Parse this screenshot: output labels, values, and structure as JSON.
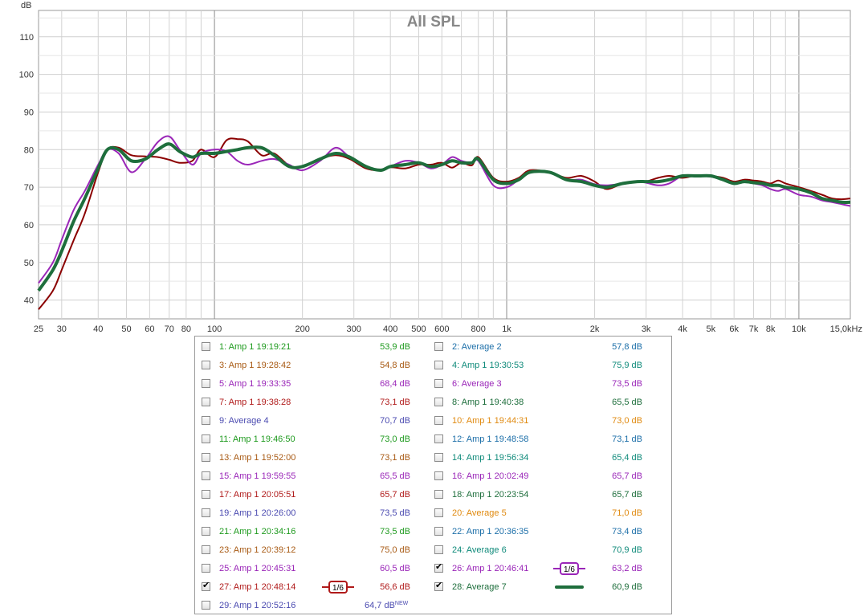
{
  "chart_data": {
    "type": "line",
    "title": "All SPL",
    "ylabel": "dB",
    "xlabel": "",
    "xscale": "log",
    "xlim": [
      25,
      15000
    ],
    "ylim": [
      35,
      117
    ],
    "grid": true,
    "y_ticks": [
      "40",
      "50",
      "60",
      "70",
      "80",
      "90",
      "100",
      "110"
    ],
    "y_tick_values": [
      40,
      50,
      60,
      70,
      80,
      90,
      100,
      110
    ],
    "x_ticks": [
      "25",
      "30",
      "40",
      "50",
      "60",
      "70",
      "80",
      "100",
      "200",
      "300",
      "400",
      "500",
      "600",
      "800",
      "1k",
      "2k",
      "3k",
      "4k",
      "5k",
      "6k",
      "7k",
      "8k",
      "10k",
      "15,0kHz"
    ],
    "x_tick_values": [
      25,
      30,
      40,
      50,
      60,
      70,
      80,
      100,
      200,
      300,
      400,
      500,
      600,
      800,
      1000,
      2000,
      3000,
      4000,
      5000,
      6000,
      7000,
      8000,
      10000,
      15000
    ],
    "series": [
      {
        "name": "27: Amp 1 20:48:14",
        "color": "#8b0000",
        "width": 2,
        "x": [
          25,
          28,
          30,
          33,
          36,
          40,
          43,
          47,
          52,
          58,
          64,
          70,
          76,
          84,
          90,
          100,
          110,
          120,
          130,
          145,
          160,
          180,
          200,
          230,
          260,
          290,
          330,
          370,
          400,
          450,
          500,
          550,
          600,
          650,
          700,
          760,
          800,
          900,
          1000,
          1100,
          1200,
          1400,
          1600,
          1800,
          2000,
          2200,
          2500,
          2800,
          3000,
          3300,
          3600,
          4000,
          4500,
          5000,
          5500,
          6000,
          6500,
          7000,
          7500,
          8000,
          8500,
          9000,
          10000,
          11000,
          12000,
          13000,
          14000,
          15000
        ],
        "y": [
          37.5,
          42.5,
          48,
          56,
          63,
          74,
          80,
          80.5,
          78.5,
          78.2,
          78,
          77.3,
          76.5,
          77,
          80,
          78,
          82.5,
          82.8,
          82.2,
          78.5,
          79,
          75.8,
          75.5,
          77.5,
          78.5,
          77.5,
          75,
          74.5,
          75.3,
          75,
          76,
          76,
          76.5,
          75.2,
          76.5,
          75.8,
          78,
          72.5,
          71.5,
          72.5,
          74.5,
          74,
          72.5,
          73,
          71.5,
          69.5,
          71,
          71.5,
          71.5,
          72.5,
          73,
          72.5,
          73.2,
          73,
          72.5,
          71.5,
          72,
          71.8,
          71.5,
          71,
          71.8,
          71,
          70,
          69,
          68,
          67,
          66.8,
          67
        ]
      },
      {
        "name": "26: Amp 1 20:46:41",
        "color": "#9a26b8",
        "width": 2,
        "x": [
          25,
          28,
          30,
          33,
          36,
          40,
          43,
          47,
          52,
          58,
          64,
          70,
          76,
          84,
          90,
          100,
          110,
          120,
          130,
          145,
          160,
          180,
          200,
          230,
          260,
          290,
          330,
          370,
          400,
          450,
          500,
          550,
          600,
          650,
          700,
          760,
          800,
          900,
          1000,
          1100,
          1200,
          1400,
          1600,
          1800,
          2000,
          2200,
          2500,
          2800,
          3000,
          3300,
          3600,
          4000,
          4500,
          5000,
          5500,
          6000,
          6500,
          7000,
          7500,
          8000,
          8500,
          9000,
          10000,
          11000,
          12000,
          13000,
          14000,
          15000
        ],
        "y": [
          44.5,
          50,
          56,
          64,
          69,
          76,
          80,
          79,
          74,
          77.5,
          82,
          83.5,
          80,
          76,
          79,
          80,
          79.5,
          77,
          76,
          77,
          77.5,
          76,
          74.5,
          77,
          80.5,
          78,
          75.5,
          74.5,
          75.5,
          77,
          76.5,
          75,
          76,
          78,
          77,
          76.5,
          77,
          70.5,
          70,
          72,
          74,
          74,
          72,
          72,
          70.8,
          70.5,
          71,
          71.5,
          71.2,
          70.5,
          71,
          73,
          73,
          72.8,
          72,
          71,
          71.5,
          71,
          70.5,
          69.5,
          69,
          69.5,
          68,
          67.5,
          66.5,
          66,
          65.5,
          65
        ]
      },
      {
        "name": "28: Average 7",
        "color": "#1e6e3c",
        "width": 4,
        "x": [
          25,
          28,
          30,
          33,
          36,
          40,
          43,
          47,
          52,
          58,
          64,
          70,
          76,
          84,
          90,
          100,
          110,
          120,
          130,
          145,
          160,
          180,
          200,
          230,
          260,
          290,
          330,
          370,
          400,
          450,
          500,
          550,
          600,
          650,
          700,
          760,
          800,
          900,
          1000,
          1100,
          1200,
          1400,
          1600,
          1800,
          2000,
          2200,
          2500,
          2800,
          3000,
          3300,
          3600,
          4000,
          4500,
          5000,
          5500,
          6000,
          6500,
          7000,
          7500,
          8000,
          8500,
          9000,
          10000,
          11000,
          12000,
          13000,
          14000,
          15000
        ],
        "y": [
          42.5,
          48,
          53,
          61,
          67,
          75,
          80,
          80,
          77,
          77.5,
          80,
          81.5,
          79.5,
          78,
          79,
          79,
          79.5,
          80,
          80.5,
          80.5,
          78.5,
          75.5,
          75.5,
          77.5,
          79,
          78,
          75.5,
          74.5,
          75.5,
          76,
          76.5,
          75.5,
          76,
          77,
          76.5,
          76.5,
          77.5,
          72,
          71,
          72,
          74,
          74,
          72,
          71.5,
          70.5,
          70,
          71,
          71.5,
          71.5,
          71.5,
          72,
          73,
          73,
          73,
          72,
          71,
          71.5,
          71.2,
          71,
          70.5,
          70.5,
          70,
          69.5,
          68.5,
          67,
          66.5,
          66,
          66
        ]
      }
    ]
  },
  "legend": {
    "items": [
      {
        "label": "1: Amp 1 19:19:21",
        "value": "53,9 dB",
        "color": "#1e9a1e",
        "checked": false
      },
      {
        "label": "2: Average 2",
        "value": "57,8 dB",
        "color": "#1b6ea8",
        "checked": false
      },
      {
        "label": "3: Amp 1 19:28:42",
        "value": "54,8 dB",
        "color": "#a85a14",
        "checked": false
      },
      {
        "label": "4: Amp 1 19:30:53",
        "value": "75,9 dB",
        "color": "#0f8a7a",
        "checked": false
      },
      {
        "label": "5: Amp 1 19:33:35",
        "value": "68,4 dB",
        "color": "#9a26b8",
        "checked": false
      },
      {
        "label": "6: Average 3",
        "value": "73,5 dB",
        "color": "#9a26b8",
        "checked": false
      },
      {
        "label": "7: Amp 1 19:38:28",
        "value": "73,1 dB",
        "color": "#b01a1a",
        "checked": false
      },
      {
        "label": "8: Amp 1 19:40:38",
        "value": "65,5 dB",
        "color": "#1e6e3c",
        "checked": false
      },
      {
        "label": "9: Average 4",
        "value": "70,7 dB",
        "color": "#4a4ab0",
        "checked": false
      },
      {
        "label": "10: Amp 1 19:44:31",
        "value": "73,0 dB",
        "color": "#e08a10",
        "checked": false
      },
      {
        "label": "11: Amp 1 19:46:50",
        "value": "73,0 dB",
        "color": "#1e9a1e",
        "checked": false
      },
      {
        "label": "12: Amp 1 19:48:58",
        "value": "73,1 dB",
        "color": "#1b6ea8",
        "checked": false
      },
      {
        "label": "13: Amp 1 19:52:00",
        "value": "73,1 dB",
        "color": "#a85a14",
        "checked": false
      },
      {
        "label": "14: Amp 1 19:56:34",
        "value": "65,4 dB",
        "color": "#0f8a7a",
        "checked": false
      },
      {
        "label": "15: Amp 1 19:59:55",
        "value": "65,5 dB",
        "color": "#9a26b8",
        "checked": false
      },
      {
        "label": "16: Amp 1 20:02:49",
        "value": "65,7 dB",
        "color": "#9a26b8",
        "checked": false
      },
      {
        "label": "17: Amp 1 20:05:51",
        "value": "65,7 dB",
        "color": "#b01a1a",
        "checked": false
      },
      {
        "label": "18: Amp 1 20:23:54",
        "value": "65,7 dB",
        "color": "#1e6e3c",
        "checked": false
      },
      {
        "label": "19: Amp 1 20:26:00",
        "value": "73,5 dB",
        "color": "#4a4ab0",
        "checked": false
      },
      {
        "label": "20: Average 5",
        "value": "71,0 dB",
        "color": "#e08a10",
        "checked": false
      },
      {
        "label": "21: Amp 1 20:34:16",
        "value": "73,5 dB",
        "color": "#1e9a1e",
        "checked": false
      },
      {
        "label": "22: Amp 1 20:36:35",
        "value": "73,4 dB",
        "color": "#1b6ea8",
        "checked": false
      },
      {
        "label": "23: Amp 1 20:39:12",
        "value": "75,0 dB",
        "color": "#a85a14",
        "checked": false
      },
      {
        "label": "24: Average 6",
        "value": "70,9 dB",
        "color": "#0f8a7a",
        "checked": false
      },
      {
        "label": "25: Amp 1 20:45:31",
        "value": "60,5 dB",
        "color": "#9a26b8",
        "checked": false
      },
      {
        "label": "26: Amp 1 20:46:41",
        "value": "63,2 dB",
        "color": "#9a26b8",
        "checked": true,
        "smoothing": "1/6"
      },
      {
        "label": "27: Amp 1 20:48:14",
        "value": "56,6 dB",
        "color": "#b01a1a",
        "checked": true,
        "smoothing": "1/6"
      },
      {
        "label": "28: Average 7",
        "value": "60,9 dB",
        "color": "#1e6e3c",
        "checked": true,
        "line": true
      },
      {
        "label": "29: Amp 1 20:52:16",
        "value": "64,7 dB",
        "color": "#4a4ab0",
        "checked": false,
        "badge": "NEW"
      }
    ]
  }
}
